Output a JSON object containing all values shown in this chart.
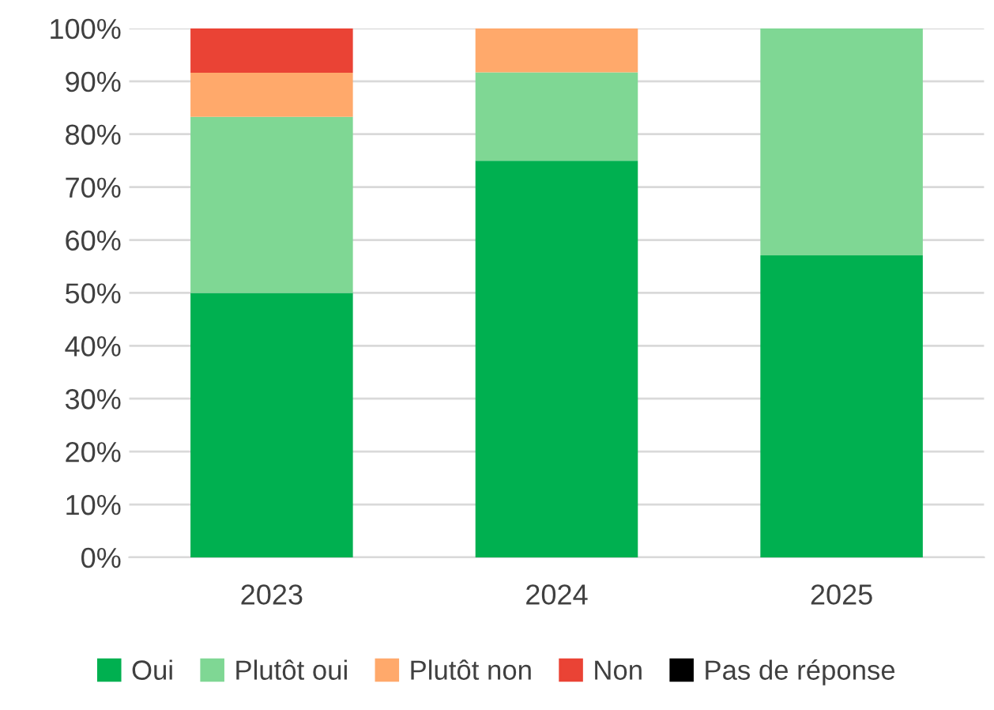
{
  "chart_data": {
    "type": "bar",
    "stacked": true,
    "categories": [
      "2023",
      "2024",
      "2025"
    ],
    "series": [
      {
        "name": "Oui",
        "color": "#00b050",
        "values": [
          50,
          75,
          57.1
        ]
      },
      {
        "name": "Plutôt oui",
        "color": "#7fd794",
        "values": [
          33.3,
          16.7,
          42.9
        ]
      },
      {
        "name": "Plutôt non",
        "color": "#ffa96b",
        "values": [
          8.3,
          8.3,
          0
        ]
      },
      {
        "name": "Non",
        "color": "#ea4335",
        "values": [
          8.4,
          0,
          0
        ]
      },
      {
        "name": "Pas de réponse",
        "color": "#000000",
        "values": [
          0,
          0,
          0
        ]
      }
    ],
    "ylim": [
      0,
      100
    ],
    "yticks": [
      {
        "value": 0,
        "label": "0%"
      },
      {
        "value": 10,
        "label": "10%"
      },
      {
        "value": 20,
        "label": "20%"
      },
      {
        "value": 30,
        "label": "30%"
      },
      {
        "value": 40,
        "label": "40%"
      },
      {
        "value": 50,
        "label": "50%"
      },
      {
        "value": 60,
        "label": "60%"
      },
      {
        "value": 70,
        "label": "70%"
      },
      {
        "value": 80,
        "label": "80%"
      },
      {
        "value": 90,
        "label": "90%"
      },
      {
        "value": 100,
        "label": "100%"
      }
    ],
    "grid": "y",
    "legend": "bottom"
  }
}
